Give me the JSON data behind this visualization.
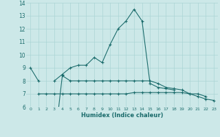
{
  "x": [
    0,
    1,
    2,
    3,
    4,
    5,
    6,
    7,
    8,
    9,
    10,
    11,
    12,
    13,
    14,
    15,
    16,
    17,
    18,
    19,
    20,
    21,
    22,
    23
  ],
  "line1": [
    9.0,
    8.0,
    null,
    8.0,
    8.5,
    9.0,
    9.2,
    9.2,
    9.8,
    9.4,
    10.8,
    12.0,
    12.6,
    13.5,
    12.6,
    7.8,
    7.5,
    7.4,
    7.3,
    null,
    null,
    null,
    null,
    null
  ],
  "line2": [
    null,
    null,
    null,
    3.0,
    8.4,
    8.0,
    8.0,
    8.0,
    8.0,
    8.0,
    8.0,
    8.0,
    8.0,
    8.0,
    8.0,
    8.0,
    7.8,
    7.5,
    7.4,
    7.3,
    7.0,
    6.8,
    6.6,
    6.5
  ],
  "line3": [
    null,
    7.0,
    7.0,
    7.0,
    7.0,
    7.0,
    7.0,
    7.0,
    7.0,
    7.0,
    7.0,
    7.0,
    7.0,
    7.1,
    7.1,
    7.1,
    7.1,
    7.1,
    7.1,
    7.1,
    7.0,
    7.0,
    6.8,
    null
  ],
  "ylim": [
    6,
    14
  ],
  "xlim": [
    -0.5,
    23.5
  ],
  "yticks": [
    6,
    7,
    8,
    9,
    10,
    11,
    12,
    13,
    14
  ],
  "xticks": [
    0,
    1,
    2,
    3,
    4,
    5,
    6,
    7,
    8,
    9,
    10,
    11,
    12,
    13,
    14,
    15,
    16,
    17,
    18,
    19,
    20,
    21,
    22,
    23
  ],
  "xlabel": "Humidex (Indice chaleur)",
  "bg_color": "#cce8e8",
  "line_color": "#1a6b6b",
  "grid_color": "#aad4d4"
}
